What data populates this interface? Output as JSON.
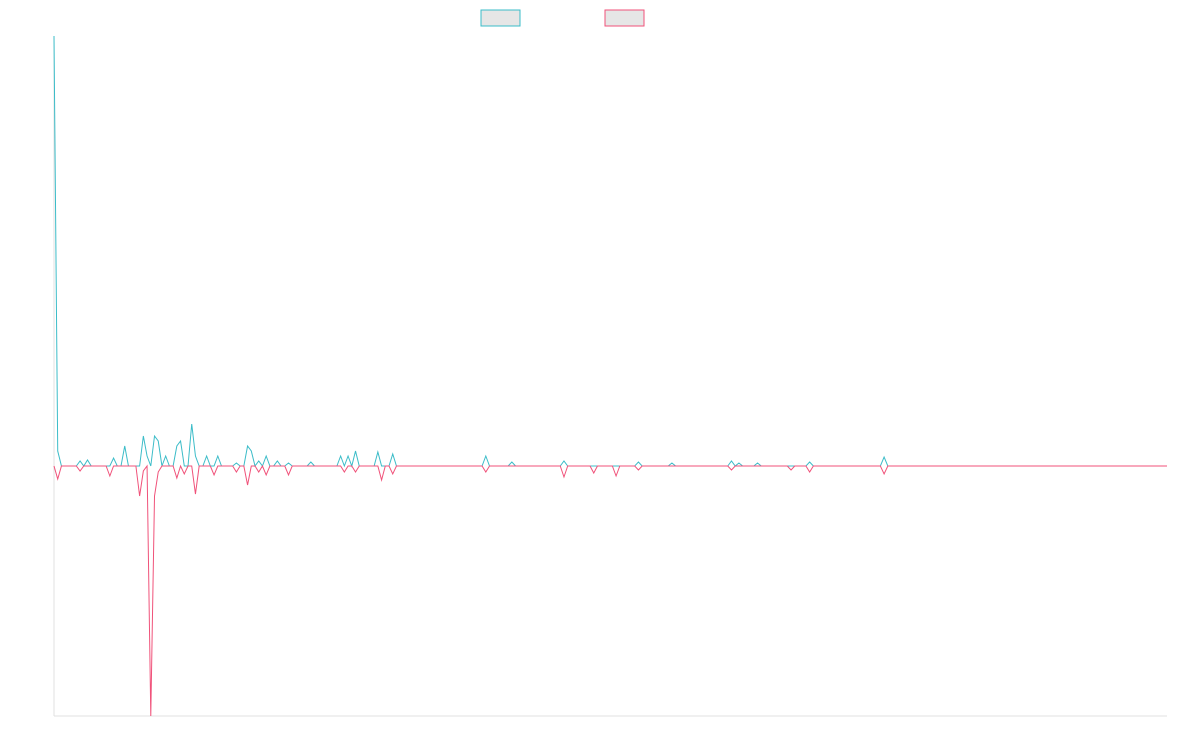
{
  "chart_data": {
    "type": "line",
    "ylim": [
      -25,
      43
    ],
    "series": [
      {
        "color": "#3bbcc8",
        "values": [
          43,
          1.5,
          0,
          0,
          0,
          0,
          0,
          0.5,
          0,
          0.6,
          0,
          0,
          0,
          0,
          0,
          0,
          0.8,
          0,
          0,
          2,
          0,
          0,
          0,
          0,
          3,
          1,
          0,
          3,
          2.5,
          0,
          1,
          0,
          0,
          2,
          2.5,
          0,
          0,
          4.2,
          1,
          0,
          0,
          1,
          0,
          0,
          1,
          0,
          0,
          0,
          0,
          0.3,
          0,
          0,
          2,
          1.5,
          0,
          0.5,
          0,
          1,
          0,
          0,
          0.5,
          0,
          0,
          0.3,
          0,
          0,
          0,
          0,
          0,
          0.4,
          0,
          0,
          0,
          0,
          0,
          0,
          0,
          1,
          0,
          1,
          0,
          1.5,
          0,
          0,
          0,
          0,
          0,
          1.4,
          0,
          0,
          0,
          1.2,
          0,
          0,
          0,
          0,
          0,
          0,
          0,
          0,
          0,
          0,
          0,
          0,
          0,
          0,
          0,
          0,
          0,
          0,
          0,
          0,
          0,
          0,
          0,
          0,
          1,
          0,
          0,
          0,
          0,
          0,
          0,
          0.4,
          0,
          0,
          0,
          0,
          0,
          0,
          0,
          0,
          0,
          0,
          0,
          0,
          0,
          0.5,
          0,
          0,
          0,
          0,
          0,
          0,
          0,
          0,
          0,
          0,
          0,
          0,
          0,
          0,
          0,
          0,
          0,
          0,
          0,
          0.4,
          0,
          0,
          0,
          0,
          0,
          0,
          0,
          0,
          0.3,
          0,
          0,
          0,
          0,
          0,
          0,
          0,
          0,
          0,
          0,
          0,
          0,
          0,
          0,
          0,
          0.5,
          0,
          0.3,
          0,
          0,
          0,
          0,
          0.3,
          0,
          0,
          0,
          0,
          0,
          0,
          0,
          0,
          0,
          0,
          0,
          0,
          0,
          0.4,
          0,
          0,
          0,
          0,
          0,
          0,
          0,
          0,
          0,
          0,
          0,
          0,
          0,
          0,
          0,
          0,
          0,
          0,
          0,
          0.9,
          0,
          0,
          0,
          0,
          0,
          0,
          0,
          0,
          0,
          0,
          0,
          0,
          0,
          0,
          0,
          0,
          0,
          0,
          0,
          0,
          0,
          0,
          0,
          0,
          0,
          0,
          0,
          0,
          0,
          0,
          0,
          0,
          0,
          0,
          0,
          0,
          0,
          0,
          0,
          0,
          0,
          0,
          0,
          0,
          0,
          0,
          0,
          0,
          0,
          0,
          0,
          0,
          0,
          0,
          0,
          0,
          0,
          0,
          0,
          0,
          0,
          0,
          0,
          0,
          0,
          0,
          0,
          0,
          0,
          0,
          0,
          0,
          0,
          0,
          0,
          0
        ]
      },
      {
        "color": "#f0527a",
        "values": [
          0,
          -1.3,
          0,
          0,
          0,
          0,
          0,
          -0.5,
          0,
          0,
          0,
          0,
          0,
          0,
          0,
          -1,
          0,
          0,
          0,
          0,
          0,
          0,
          0,
          -3,
          -0.5,
          0,
          -25,
          -3,
          -0.6,
          0,
          0,
          0,
          0,
          -1.2,
          0,
          -0.8,
          0,
          0,
          -2.8,
          0,
          0,
          0,
          0,
          -0.9,
          0,
          0,
          0,
          0,
          0,
          -0.6,
          0,
          0,
          -1.9,
          0,
          0,
          -0.6,
          0,
          -0.9,
          0,
          0,
          0,
          0,
          0,
          -0.9,
          0,
          0,
          0,
          0,
          0,
          0,
          0,
          0,
          0,
          0,
          0,
          0,
          0,
          0,
          -0.6,
          0,
          0,
          -0.6,
          0,
          0,
          0,
          0,
          0,
          0,
          -1.4,
          0,
          0,
          -0.8,
          0,
          0,
          0,
          0,
          0,
          0,
          0,
          0,
          0,
          0,
          0,
          0,
          0,
          0,
          0,
          0,
          0,
          0,
          0,
          0,
          0,
          0,
          0,
          0,
          -0.6,
          0,
          0,
          0,
          0,
          0,
          0,
          0,
          0,
          0,
          0,
          0,
          0,
          0,
          0,
          0,
          0,
          0,
          0,
          0,
          0,
          -1.1,
          0,
          0,
          0,
          0,
          0,
          0,
          0,
          -0.7,
          0,
          0,
          0,
          0,
          0,
          -1,
          0,
          0,
          0,
          0,
          0,
          -0.4,
          0,
          0,
          0,
          0,
          0,
          0,
          0,
          0,
          0,
          0,
          0,
          0,
          0,
          0,
          0,
          0,
          0,
          0,
          0,
          0,
          0,
          0,
          0,
          0,
          -0.4,
          0,
          0,
          0,
          0,
          0,
          0,
          0,
          0,
          0,
          0,
          0,
          0,
          0,
          0,
          0,
          -0.4,
          0,
          0,
          0,
          0,
          -0.6,
          0,
          0,
          0,
          0,
          0,
          0,
          0,
          0,
          0,
          0,
          0,
          0,
          0,
          0,
          0,
          0,
          0,
          0,
          0,
          -0.8,
          0,
          0,
          0,
          0,
          0,
          0,
          0,
          0,
          0,
          0,
          0,
          0,
          0,
          0,
          0,
          0,
          0,
          0,
          0,
          0,
          0,
          0,
          0,
          0,
          0,
          0,
          0,
          0,
          0,
          0,
          0,
          0,
          0,
          0,
          0,
          0,
          0,
          0,
          0,
          0,
          0,
          0,
          0,
          0,
          0,
          0,
          0,
          0,
          0,
          0,
          0,
          0,
          0,
          0,
          0,
          0,
          0,
          0,
          0,
          0,
          0,
          0,
          0,
          0,
          0,
          0,
          0,
          0,
          0,
          0,
          0,
          0,
          0,
          0,
          0,
          0
        ]
      }
    ]
  }
}
